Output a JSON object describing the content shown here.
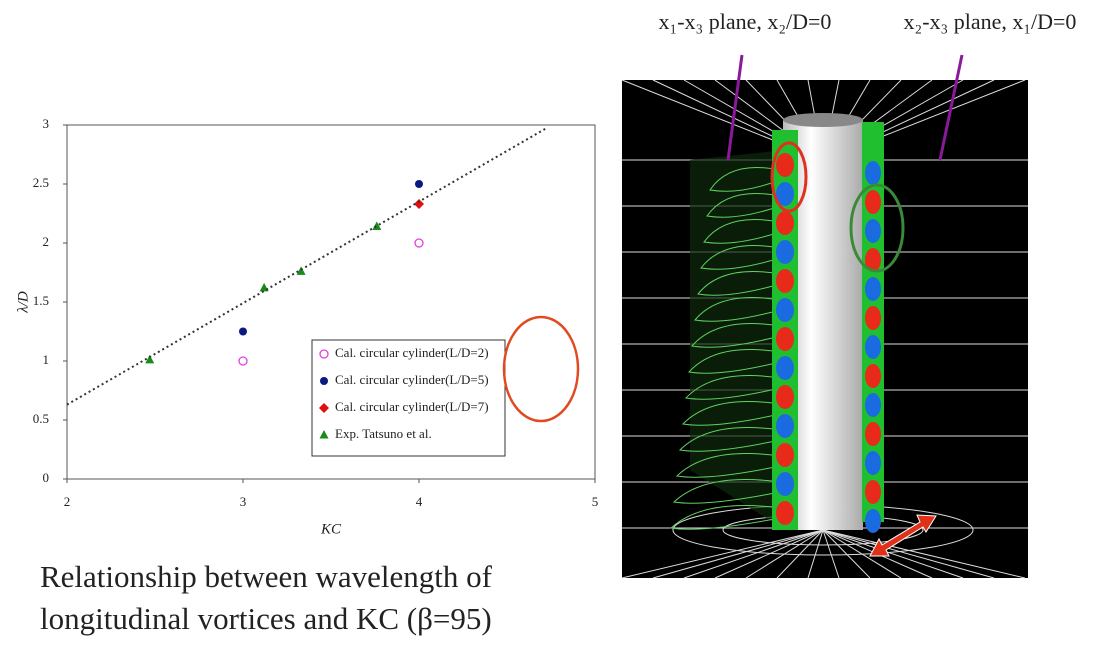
{
  "chart_data": {
    "type": "scatter",
    "x_label": "KC",
    "y_label": "λ/D",
    "xlim": [
      2,
      5
    ],
    "xticks": [
      2,
      3,
      4,
      5
    ],
    "ylim": [
      0,
      3
    ],
    "yticks": [
      0,
      0.5,
      1,
      1.5,
      2,
      2.5,
      3
    ],
    "series": [
      {
        "name": "Cal. circular  cylinder(L/D=2)",
        "color": "#e040e0",
        "marker": "open-circle",
        "x": [
          3,
          4
        ],
        "values": [
          1,
          2
        ]
      },
      {
        "name": "Cal. circular  cylinder(L/D=5)",
        "color": "#0a1a80",
        "marker": "circle",
        "x": [
          3,
          4
        ],
        "values": [
          1.25,
          2.5
        ]
      },
      {
        "name": "Cal. circular  cylinder(L/D=7)",
        "color": "#e01010",
        "marker": "diamond",
        "x": [
          4
        ],
        "values": [
          2.33
        ]
      },
      {
        "name": "Exp. Tatsuno et al.",
        "color": "#1a8a1a",
        "marker": "triangle",
        "x": [
          2.47,
          3.12,
          3.33,
          3.76
        ],
        "values": [
          1.01,
          1.62,
          1.76,
          2.14
        ]
      },
      {
        "color": "#333333",
        "marker": "dotted-line",
        "x": [
          2,
          4.72
        ],
        "values": [
          0.63,
          2.97
        ]
      }
    ]
  },
  "plane_labels": [
    "x₁-x₃ plane, x₂/D=0",
    "x₂-x₃ plane, x₁/D=0"
  ],
  "caption": [
    "Relationship between wavelength of",
    "longitudinal vortices and KC (β=95)"
  ]
}
